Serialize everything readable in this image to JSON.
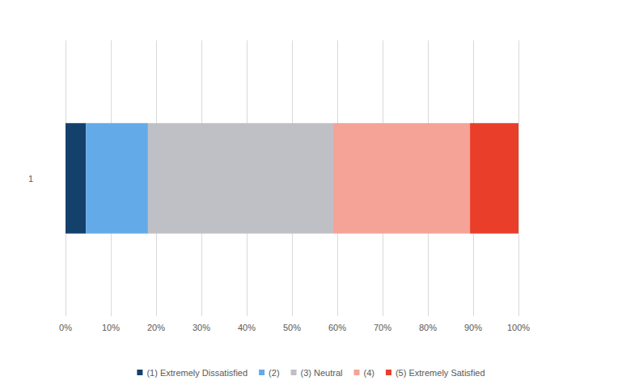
{
  "chart_data": {
    "type": "bar",
    "orientation": "horizontal",
    "stacked": true,
    "categories": [
      "1"
    ],
    "series": [
      {
        "name": "(1) Extremely Dissatisfied",
        "color": "#14406c",
        "values": [
          4.5
        ]
      },
      {
        "name": "(2)",
        "color": "#63abe8",
        "values": [
          13.7
        ]
      },
      {
        "name": "(3) Neutral",
        "color": "#bfbfc6",
        "values": [
          40.9
        ]
      },
      {
        "name": "(4)",
        "color": "#f5a396",
        "values": [
          30.2
        ]
      },
      {
        "name": "(5) Extremely Satisfied",
        "color": "#e83e2a",
        "values": [
          10.7
        ]
      }
    ],
    "xlim": [
      0,
      100
    ],
    "xticks": [
      {
        "value": 0,
        "label": "0%"
      },
      {
        "value": 10,
        "label": "10%"
      },
      {
        "value": 20,
        "label": "20%"
      },
      {
        "value": 30,
        "label": "30%"
      },
      {
        "value": 40,
        "label": "40%"
      },
      {
        "value": 50,
        "label": "50%"
      },
      {
        "value": 60,
        "label": "60%"
      },
      {
        "value": 70,
        "label": "70%"
      },
      {
        "value": 80,
        "label": "80%"
      },
      {
        "value": 90,
        "label": "90%"
      },
      {
        "value": 100,
        "label": "100%"
      }
    ],
    "grid": true,
    "legend": "bottom"
  }
}
